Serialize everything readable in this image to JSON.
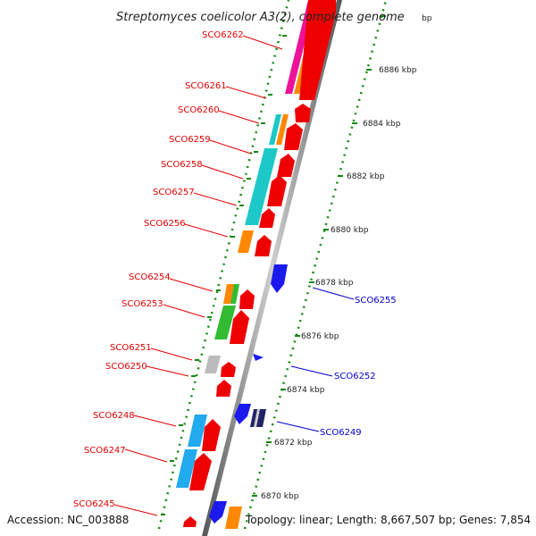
{
  "title": "Streptomyces coelicolor A3(2), complete genome",
  "accession": "Accession: NC_003888",
  "summary": "Topology: linear; Length: 8,667,507 bp; Genes: 7,854",
  "ticks": [
    "6870 kbp",
    "6872 kbp",
    "6874 kbp",
    "6876 kbp",
    "6878 kbp",
    "6880 kbp",
    "6882 kbp",
    "6884 kbp",
    "6886 kbp",
    "bp"
  ],
  "left_genes": [
    "SCO6262",
    "SCO6261",
    "SCO6260",
    "SCO6259",
    "SCO6258",
    "SCO6257",
    "SCO6256",
    "SCO6254",
    "SCO6253",
    "SCO6251",
    "SCO6250",
    "SCO6248",
    "SCO6247",
    "SCO6245"
  ],
  "right_genes": [
    "SCO6255",
    "SCO6252",
    "SCO6249"
  ],
  "colors": {
    "forward": "#ee0000",
    "reverse": "#1a1aee",
    "magenta": "#ee1199",
    "orange": "#ff8800",
    "cyan": "#1cc8c8",
    "green": "#33bb33",
    "sky": "#22aaee",
    "grey": "#bbbbbb",
    "navy": "#222266",
    "dots": "#118811",
    "backbone": "#777777"
  }
}
